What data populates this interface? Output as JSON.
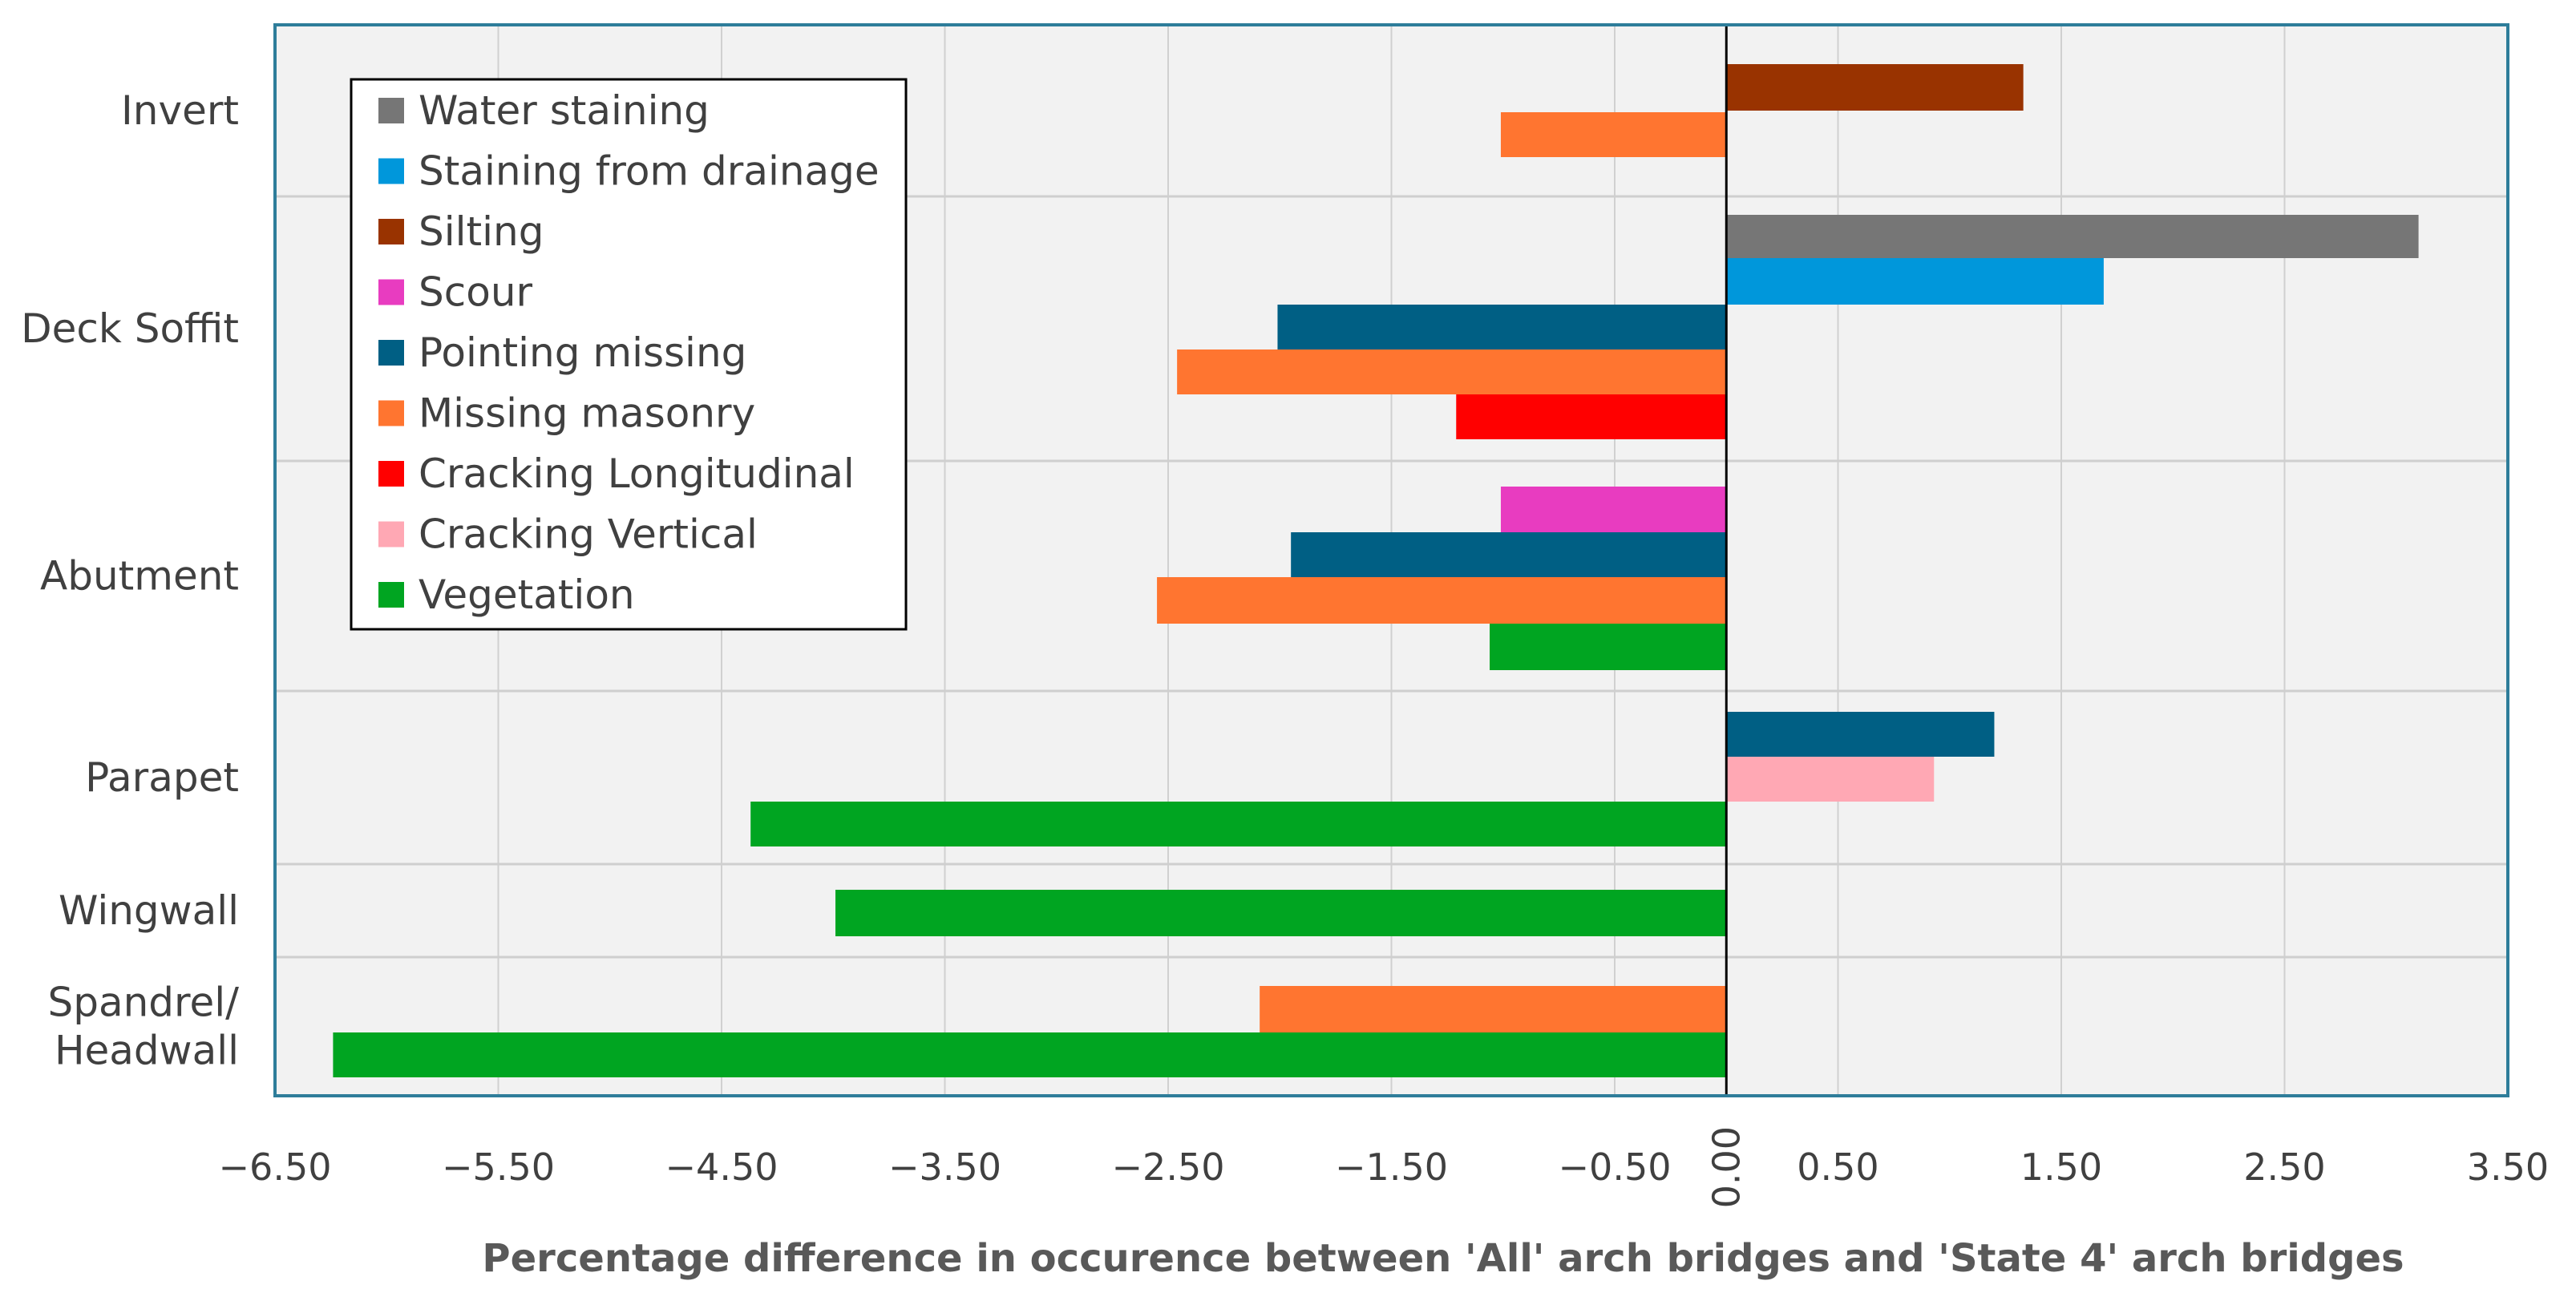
{
  "chart_data": {
    "type": "bar",
    "orientation": "horizontal",
    "title": "",
    "xlabel": "Percentage difference in occurence between 'All' arch bridges and 'State 4' arch bridges",
    "ylabel": "",
    "xlim": [
      -6.5,
      3.5
    ],
    "xticks": [
      -6.5,
      -5.5,
      -4.5,
      -3.5,
      -2.5,
      -1.5,
      -0.5,
      0.0,
      0.5,
      1.5,
      2.5,
      3.5
    ],
    "xtick_labels": [
      "−6.50",
      "−5.50",
      "−4.50",
      "−3.50",
      "−2.50",
      "−1.50",
      "−0.50",
      "0.00",
      "0.50",
      "1.50",
      "2.50",
      "3.50"
    ],
    "grid": true,
    "legend_position": "top-left",
    "legend": [
      {
        "name": "Water staining",
        "color": "#767676"
      },
      {
        "name": "Staining from drainage",
        "color": "#0097DB"
      },
      {
        "name": "Silting",
        "color": "#993300"
      },
      {
        "name": "Scour",
        "color": "#E83CC0"
      },
      {
        "name": "Pointing missing",
        "color": "#005F84"
      },
      {
        "name": "Missing masonry",
        "color": "#FF7530"
      },
      {
        "name": "Cracking Longitudinal",
        "color": "#FF0000"
      },
      {
        "name": "Cracking Vertical",
        "color": "#FFA8B4"
      },
      {
        "name": "Vegetation",
        "color": "#00A521"
      }
    ],
    "groups": [
      {
        "category": "Invert",
        "label_lines": [
          "Invert"
        ],
        "bars": [
          {
            "series": "Silting",
            "value": 1.33
          },
          {
            "series": "Missing masonry",
            "value": -1.01
          }
        ]
      },
      {
        "category": "Deck Soffit",
        "label_lines": [
          "Deck Soffit"
        ],
        "bars": [
          {
            "series": "Water staining",
            "value": 3.1
          },
          {
            "series": "Staining from drainage",
            "value": 1.69
          },
          {
            "series": "Pointing missing",
            "value": -2.01
          },
          {
            "series": "Missing masonry",
            "value": -2.46
          },
          {
            "series": "Cracking Longitudinal",
            "value": -1.21
          }
        ]
      },
      {
        "category": "Abutment",
        "label_lines": [
          "Abutment"
        ],
        "bars": [
          {
            "series": "Scour",
            "value": -1.01
          },
          {
            "series": "Pointing missing",
            "value": -1.95
          },
          {
            "series": "Missing masonry",
            "value": -2.55
          },
          {
            "series": "Vegetation",
            "value": -1.06
          }
        ]
      },
      {
        "category": "Parapet",
        "label_lines": [
          "Parapet"
        ],
        "bars": [
          {
            "series": "Pointing missing",
            "value": 1.2
          },
          {
            "series": "Cracking Vertical",
            "value": 0.93
          },
          {
            "series": "Vegetation",
            "value": -4.37
          }
        ]
      },
      {
        "category": "Wingwall",
        "label_lines": [
          "Wingwall"
        ],
        "bars": [
          {
            "series": "Vegetation",
            "value": -3.99
          }
        ]
      },
      {
        "category": "Spandrel/ Headwall",
        "label_lines": [
          "Spandrel/",
          "Headwall"
        ],
        "bars": [
          {
            "series": "Missing masonry",
            "value": -2.09
          },
          {
            "series": "Vegetation",
            "value": -6.24
          }
        ]
      }
    ]
  }
}
